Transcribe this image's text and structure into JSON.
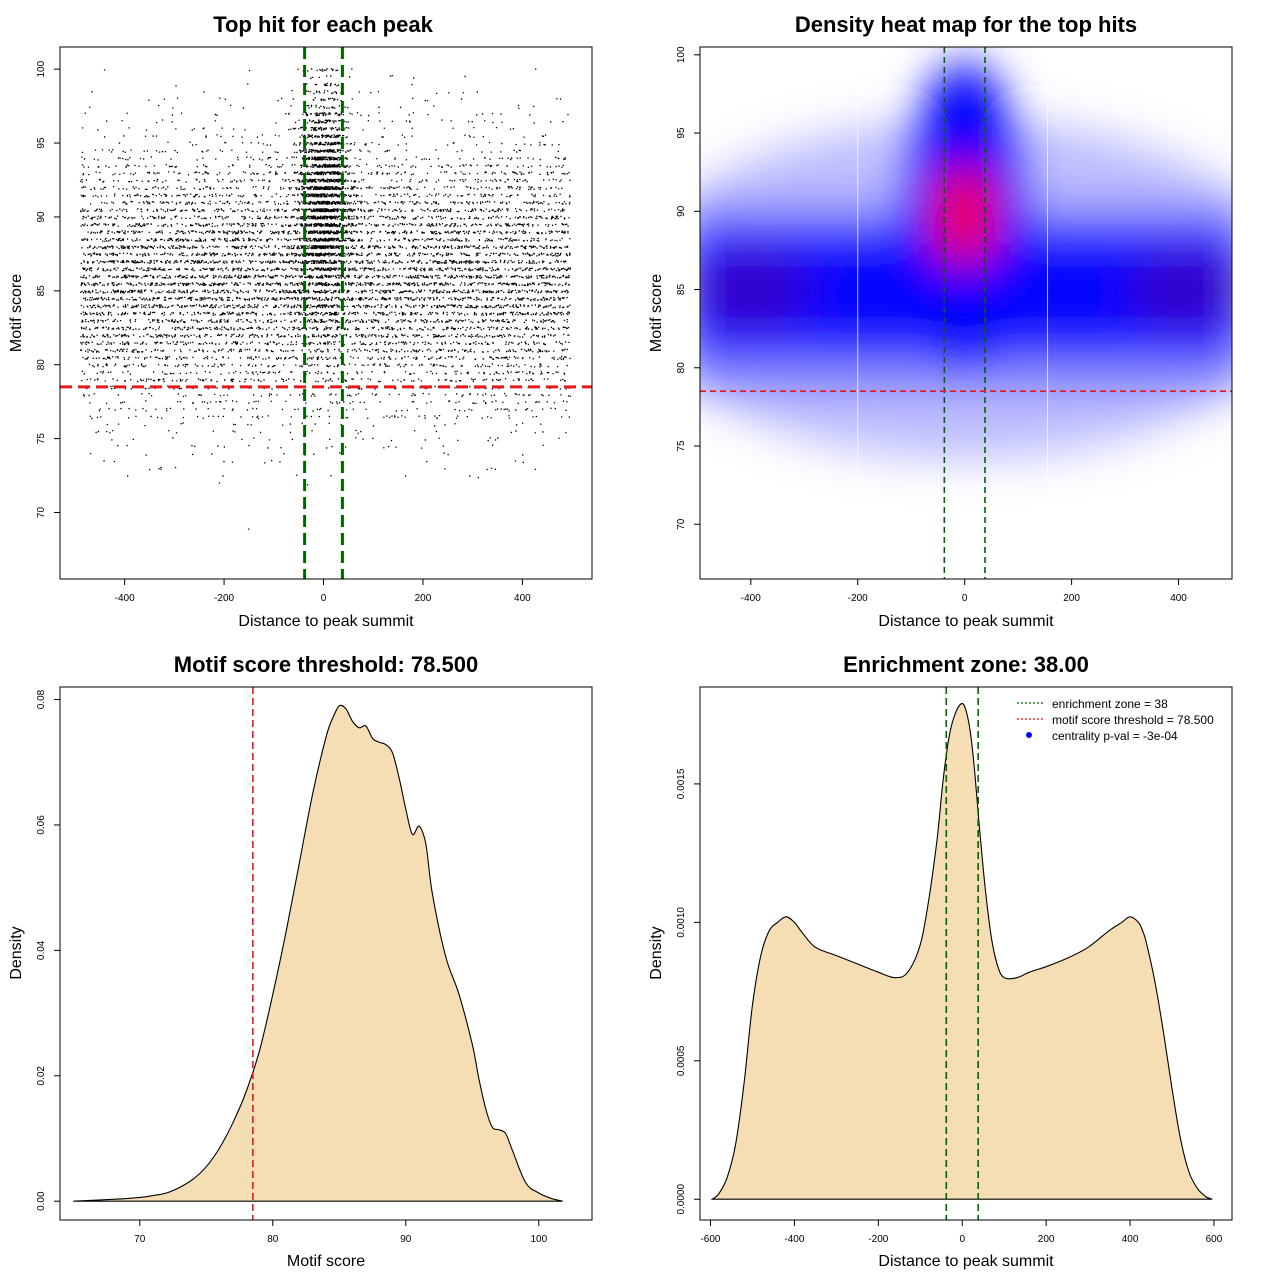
{
  "figure": {
    "panels": [
      {
        "title": "Top hit for each peak",
        "xlabel": "Distance to peak summit",
        "ylabel": "Motif score"
      },
      {
        "title": "Density heat map for the top hits",
        "xlabel": "Distance to peak summit",
        "ylabel": "Motif score"
      },
      {
        "title": "Motif score threshold: 78.500",
        "xlabel": "Motif score",
        "ylabel": "Density"
      },
      {
        "title": "Enrichment zone: 38.00",
        "xlabel": "Distance to peak summit",
        "ylabel": "Density"
      }
    ],
    "legend": {
      "items": [
        {
          "label": "enrichment zone = 38",
          "color": "#006400",
          "symbol": "dotted-line"
        },
        {
          "label": "motif score threshold = 78.500",
          "color": "#ff0000",
          "symbol": "dotted-line"
        },
        {
          "label": "centrality p-val = -3e-04",
          "color": "#0000ff",
          "symbol": "point"
        }
      ]
    },
    "colors": {
      "zone_line": "#006400",
      "threshold_line": "#e41a1c",
      "density_fill": "#f5deb3",
      "points": "#000000",
      "heat_low": "#ffffff",
      "heat_mid": "#0000ff",
      "heat_high": "#ff0000"
    }
  },
  "chart_data": [
    {
      "type": "scatter",
      "title": "Top hit for each peak",
      "xlabel": "Distance to peak summit",
      "ylabel": "Motif score",
      "xlim": [
        -530,
        540
      ],
      "ylim": [
        65.5,
        101.5
      ],
      "xticks": [
        -400,
        -200,
        0,
        200,
        400
      ],
      "yticks": [
        70,
        75,
        80,
        85,
        90,
        95,
        100
      ],
      "x_range": [
        -490,
        495
      ],
      "y_range": [
        67,
        100
      ],
      "threshold_y": 78.5,
      "zone_x": [
        -38,
        38
      ],
      "n_points_approx": 25000,
      "dense_score_band": [
        80,
        92
      ],
      "central_enrichment_score_band": [
        86,
        100
      ]
    },
    {
      "type": "heatmap",
      "title": "Density heat map for the top hits",
      "xlabel": "Distance to peak summit",
      "ylabel": "Motif score",
      "xlim": [
        -495,
        500
      ],
      "ylim": [
        66.5,
        100.5
      ],
      "xticks": [
        -400,
        -200,
        0,
        200,
        400
      ],
      "yticks": [
        70,
        75,
        80,
        85,
        90,
        95,
        100
      ],
      "threshold_y": 78.5,
      "zone_x": [
        -38,
        38
      ],
      "hotspots": [
        {
          "x": 0,
          "y": 91,
          "level": "high"
        },
        {
          "x": 0,
          "y": 88.5,
          "level": "high"
        },
        {
          "x": -400,
          "y": 85,
          "level": "medium"
        },
        {
          "x": 420,
          "y": 85,
          "level": "medium"
        }
      ]
    },
    {
      "type": "area",
      "title": "Motif score threshold: 78.500",
      "xlabel": "Motif score",
      "ylabel": "Density",
      "xlim": [
        64,
        104
      ],
      "ylim": [
        -0.003,
        0.082
      ],
      "xticks": [
        70,
        80,
        90,
        100
      ],
      "yticks": [
        0.0,
        0.02,
        0.04,
        0.06,
        0.08
      ],
      "ytick_labels": [
        "0.00",
        "0.02",
        "0.04",
        "0.06",
        "0.08"
      ],
      "threshold_x": 78.5,
      "x": [
        65,
        68,
        70,
        71,
        72,
        73,
        74,
        75,
        76,
        77,
        78,
        79,
        80,
        81,
        82,
        83,
        84,
        84.5,
        85,
        85.5,
        86,
        86.5,
        87,
        87.5,
        88,
        88.5,
        89,
        89.5,
        90,
        90.5,
        91,
        91.5,
        92,
        93,
        94,
        95,
        95.5,
        96,
        96.5,
        97,
        97.5,
        98,
        99,
        100,
        101,
        101.8
      ],
      "y": [
        0.0,
        0.0003,
        0.0006,
        0.0009,
        0.0013,
        0.0022,
        0.0035,
        0.0055,
        0.0085,
        0.0125,
        0.0175,
        0.024,
        0.033,
        0.043,
        0.054,
        0.065,
        0.074,
        0.077,
        0.079,
        0.0785,
        0.0765,
        0.0755,
        0.0758,
        0.0738,
        0.0732,
        0.0728,
        0.0715,
        0.0675,
        0.0625,
        0.0585,
        0.0598,
        0.057,
        0.049,
        0.039,
        0.033,
        0.025,
        0.0195,
        0.0148,
        0.0118,
        0.0114,
        0.0108,
        0.0082,
        0.003,
        0.0013,
        0.0004,
        0.0
      ]
    },
    {
      "type": "area",
      "title": "Enrichment zone: 38.00",
      "xlabel": "Distance to peak summit",
      "ylabel": "Density",
      "xlim": [
        -625,
        643
      ],
      "ylim": [
        -7.5e-05,
        0.00185
      ],
      "xticks": [
        -600,
        -400,
        -200,
        0,
        200,
        400,
        600
      ],
      "yticks": [
        0.0,
        0.0005,
        0.001,
        0.0015
      ],
      "ytick_labels": [
        "0.0000",
        "0.0005",
        "0.0010",
        "0.0015"
      ],
      "zone_x": [
        -38,
        38
      ],
      "x": [
        -596,
        -580,
        -560,
        -540,
        -520,
        -500,
        -480,
        -460,
        -440,
        -420,
        -400,
        -380,
        -350,
        -300,
        -250,
        -200,
        -160,
        -130,
        -100,
        -80,
        -60,
        -45,
        -30,
        -15,
        0,
        10,
        20,
        30,
        40,
        55,
        70,
        85,
        100,
        130,
        160,
        200,
        250,
        300,
        350,
        380,
        400,
        420,
        430,
        440,
        460,
        480,
        500,
        520,
        540,
        560,
        580,
        596
      ],
      "y": [
        0.0,
        2e-05,
        8e-05,
        0.0002,
        0.00042,
        0.0007,
        0.00088,
        0.00097,
        0.001,
        0.00102,
        0.001,
        0.00096,
        0.00091,
        0.00088,
        0.00085,
        0.00082,
        0.0008,
        0.00082,
        0.00092,
        0.00108,
        0.0013,
        0.00152,
        0.00168,
        0.00176,
        0.00179,
        0.00176,
        0.00168,
        0.00154,
        0.00136,
        0.00112,
        0.00094,
        0.00084,
        0.0008,
        0.0008,
        0.00082,
        0.00084,
        0.00087,
        0.00091,
        0.00097,
        0.001,
        0.00102,
        0.001,
        0.00097,
        0.00092,
        0.00078,
        0.0006,
        0.0004,
        0.00022,
        0.0001,
        4e-05,
        1e-05,
        0.0
      ]
    }
  ]
}
